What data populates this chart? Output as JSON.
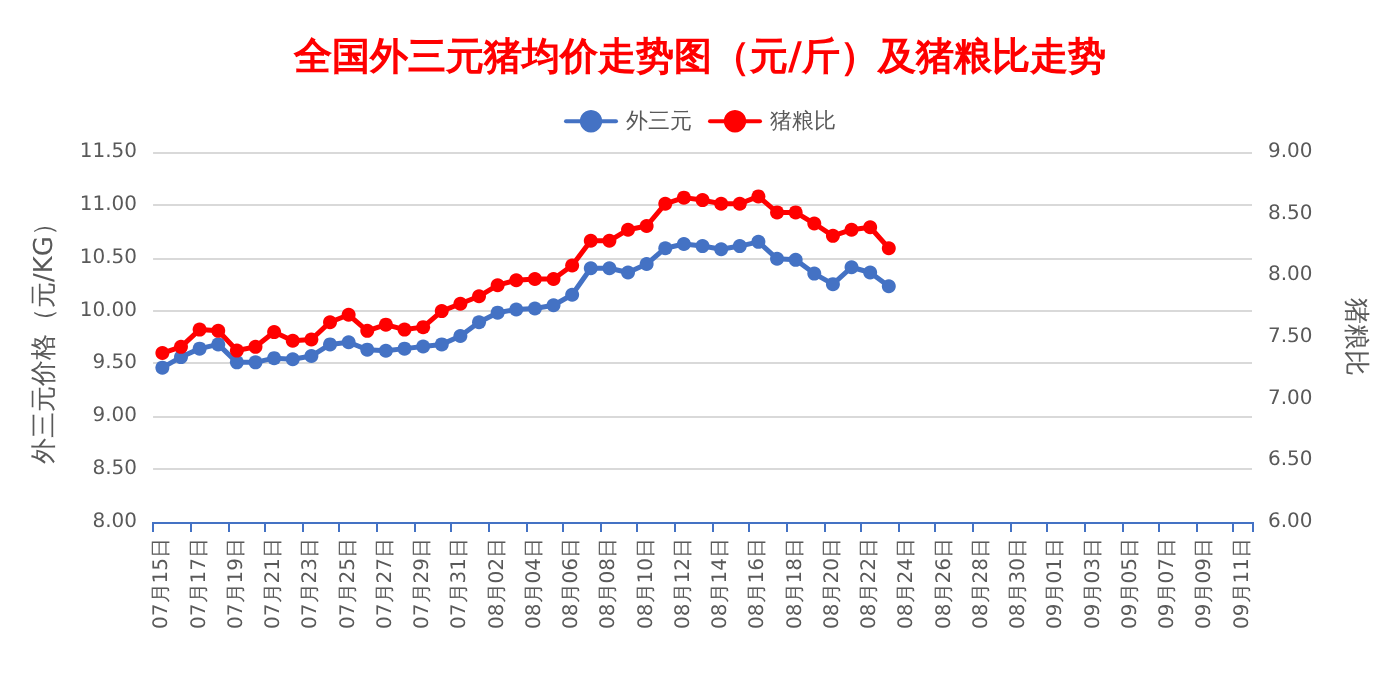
{
  "chart_data": {
    "type": "line",
    "title": "全国外三元猪均价走势图（元/斤）及猪粮比走势",
    "ylabel": "外三元价格（元/KG）",
    "y2label": "猪粮比",
    "categories": [
      "07月15日",
      null,
      "07月17日",
      null,
      "07月19日",
      null,
      "07月21日",
      null,
      "07月23日",
      null,
      "07月25日",
      null,
      "07月27日",
      null,
      "07月29日",
      null,
      "07月31日",
      null,
      "08月02日",
      null,
      "08月04日",
      null,
      "08月06日",
      null,
      "08月08日",
      null,
      "08月10日",
      null,
      "08月12日",
      null,
      "08月14日",
      null,
      "08月16日",
      null,
      "08月18日",
      null,
      "08月20日",
      null,
      "08月22日",
      null,
      "08月24日",
      null,
      "08月26日",
      null,
      "08月28日",
      null,
      "08月30日",
      null,
      "09月01日",
      null,
      "09月03日",
      null,
      "09月05日",
      null,
      "09月07日",
      null,
      "09月09日",
      null,
      "09月11日"
    ],
    "series": [
      {
        "name": "外三元",
        "color": "#4472c4",
        "values": [
          9.46,
          9.56,
          9.64,
          9.68,
          9.51,
          9.51,
          9.55,
          9.54,
          9.57,
          9.68,
          9.7,
          9.63,
          9.62,
          9.64,
          9.66,
          9.68,
          9.76,
          9.89,
          9.98,
          10.01,
          10.02,
          10.05,
          10.15,
          10.4,
          10.4,
          10.36,
          10.44,
          10.59,
          10.63,
          10.61,
          10.58,
          10.61,
          10.65,
          10.49,
          10.48,
          10.35,
          10.25,
          10.41,
          10.36,
          10.23,
          null,
          null,
          null,
          null,
          null,
          null,
          null,
          null,
          null,
          null,
          null,
          null,
          null,
          null,
          null,
          null,
          null,
          null,
          null
        ]
      },
      {
        "name": "猪粮比",
        "color": "#ff0000",
        "axis": "y2",
        "values": [
          7.37,
          7.42,
          7.56,
          7.55,
          7.39,
          7.42,
          7.54,
          7.47,
          7.48,
          7.62,
          7.68,
          7.55,
          7.6,
          7.56,
          7.58,
          7.71,
          7.77,
          7.83,
          7.92,
          7.96,
          7.97,
          7.97,
          8.08,
          8.28,
          8.28,
          8.37,
          8.4,
          8.58,
          8.63,
          8.61,
          8.58,
          8.58,
          8.64,
          8.51,
          8.51,
          8.42,
          8.32,
          8.37,
          8.39,
          8.22,
          null,
          null,
          null,
          null,
          null,
          null,
          null,
          null,
          null,
          null,
          null,
          null,
          null,
          null,
          null,
          null,
          null,
          null,
          null
        ]
      }
    ],
    "ylim": [
      8,
      11.5
    ],
    "yticks": [
      {
        "value": 8,
        "label": "8.00"
      },
      {
        "value": 8.5,
        "label": "8.50"
      },
      {
        "value": 9,
        "label": "9.00"
      },
      {
        "value": 9.5,
        "label": "9.50"
      },
      {
        "value": 10,
        "label": "10.00"
      },
      {
        "value": 10.5,
        "label": "10.50"
      },
      {
        "value": 11,
        "label": "11.00"
      },
      {
        "value": 11.5,
        "label": "11.50"
      }
    ],
    "y2lim": [
      6,
      9
    ],
    "y2ticks": [
      {
        "value": 6,
        "label": "6.00"
      },
      {
        "value": 6.5,
        "label": "6.50"
      },
      {
        "value": 7,
        "label": "7.00"
      },
      {
        "value": 7.5,
        "label": "7.50"
      },
      {
        "value": 8,
        "label": "8.00"
      },
      {
        "value": 8.5,
        "label": "8.50"
      },
      {
        "value": 9,
        "label": "9.00"
      }
    ],
    "grid": "y",
    "legend": "top",
    "marker": "circle",
    "line_style": "solid"
  }
}
